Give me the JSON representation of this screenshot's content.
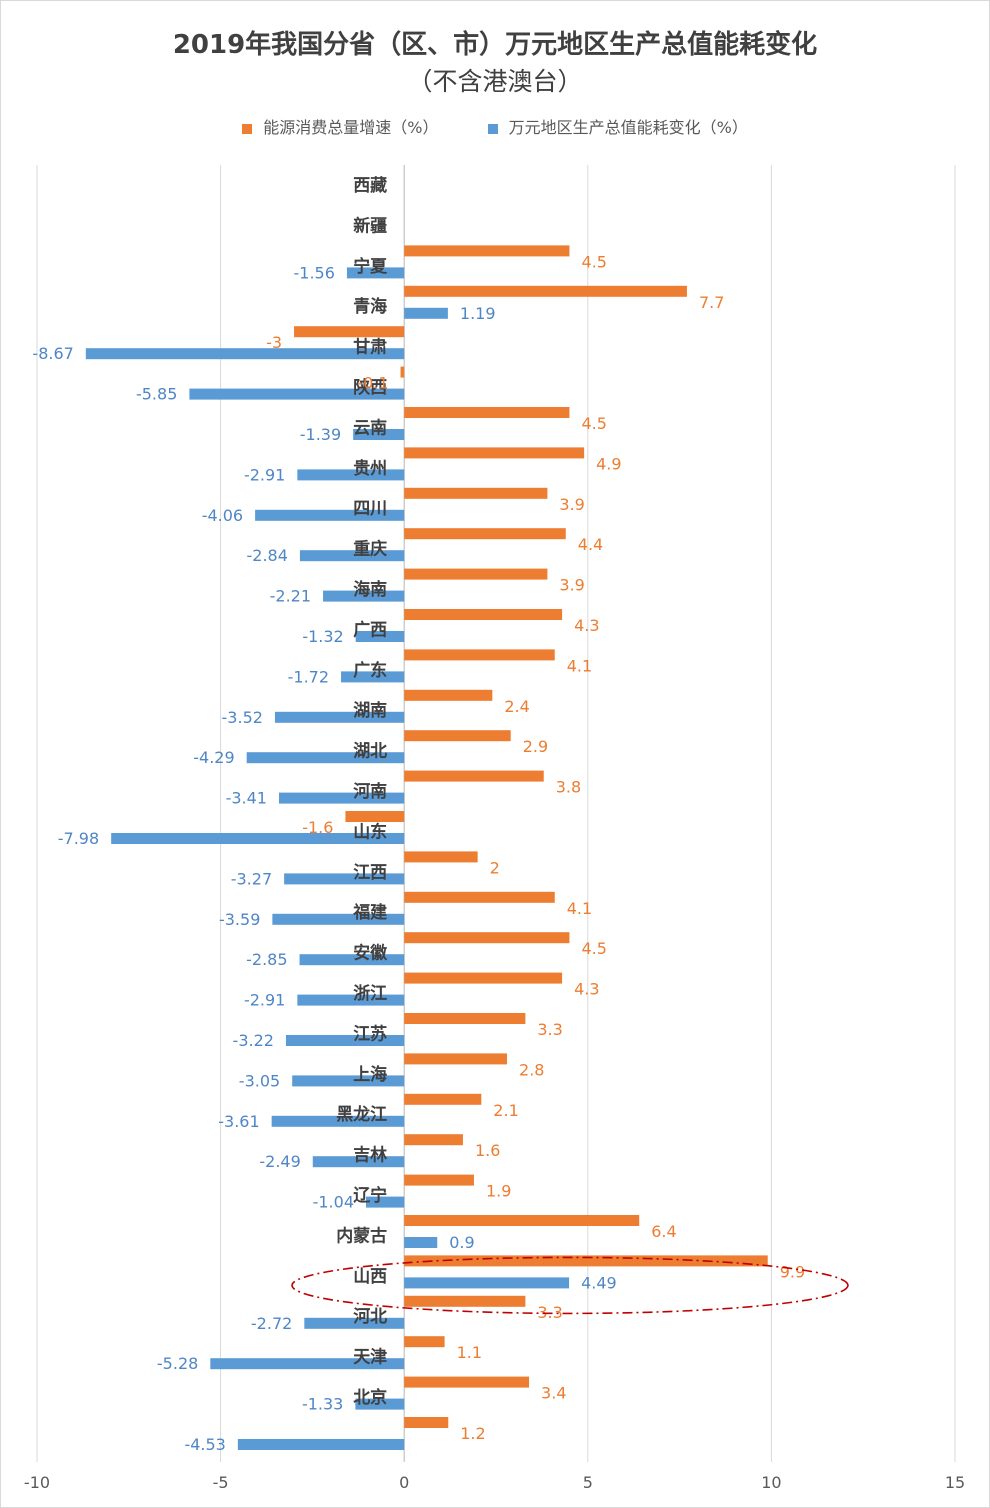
{
  "chart_data": {
    "type": "bar",
    "orientation": "horizontal",
    "title": "2019年我国分省（区、市）万元地区生产总值能耗变化",
    "subtitle": "（不含港澳台）",
    "legend_position": "top",
    "grid": true,
    "xlim": [
      -10,
      15
    ],
    "xticks": [
      -10,
      -5,
      0,
      5,
      10,
      15
    ],
    "xtick_labels": [
      "-10",
      "-5",
      "0",
      "5",
      "10",
      "15"
    ],
    "categories": [
      "西藏",
      "新疆",
      "宁夏",
      "青海",
      "甘肃",
      "陕西",
      "云南",
      "贵州",
      "四川",
      "重庆",
      "海南",
      "广西",
      "广东",
      "湖南",
      "湖北",
      "河南",
      "山东",
      "江西",
      "福建",
      "安徽",
      "浙江",
      "江苏",
      "上海",
      "黑龙江",
      "吉林",
      "辽宁",
      "内蒙古",
      "山西",
      "河北",
      "天津",
      "北京"
    ],
    "series": [
      {
        "name": "能源消费总量增速（%）",
        "color": "#ED7D31",
        "values": [
          null,
          4.5,
          7.7,
          -3,
          -0.1,
          4.5,
          4.9,
          3.9,
          4.4,
          3.9,
          4.3,
          4.1,
          2.4,
          2.9,
          3.8,
          -1.6,
          2,
          4.1,
          4.5,
          4.3,
          3.3,
          2.8,
          2.1,
          1.6,
          1.9,
          6.4,
          9.9,
          3.3,
          1.1,
          3.4,
          1.2
        ],
        "labels": [
          "",
          "4.5",
          "7.7",
          "-3",
          "-0.1",
          "4.5",
          "4.9",
          "3.9",
          "4.4",
          "3.9",
          "4.3",
          "4.1",
          "2.4",
          "2.9",
          "3.8",
          "-1.6",
          "2",
          "4.1",
          "4.5",
          "4.3",
          "3.3",
          "2.8",
          "2.1",
          "1.6",
          "1.9",
          "6.4",
          "9.9",
          "3.3",
          "1.1",
          "3.4",
          "1.2"
        ]
      },
      {
        "name": "万元地区生产总值能耗变化（%）",
        "color": "#5B9BD5",
        "values": [
          null,
          -1.56,
          1.19,
          -8.67,
          -5.85,
          -1.39,
          -2.91,
          -4.06,
          -2.84,
          -2.21,
          -1.32,
          -1.72,
          -3.52,
          -4.29,
          -3.41,
          -7.98,
          -3.27,
          -3.59,
          -2.85,
          -2.91,
          -3.22,
          -3.05,
          -3.61,
          -2.49,
          -1.04,
          0.9,
          4.49,
          -2.72,
          -5.28,
          -1.33,
          -4.53
        ],
        "labels": [
          "",
          "-1.56",
          "1.19",
          "-8.67",
          "-5.85",
          "-1.39",
          "-2.91",
          "-4.06",
          "-2.84",
          "-2.21",
          "-1.32",
          "-1.72",
          "-3.52",
          "-4.29",
          "-3.41",
          "-7.98",
          "-3.27",
          "-3.59",
          "-2.85",
          "-2.91",
          "-3.22",
          "-3.05",
          "-3.61",
          "-2.49",
          "-1.04",
          "0.9",
          "4.49",
          "-2.72",
          "-5.28",
          "-1.33",
          "-4.53"
        ]
      }
    ],
    "highlight": {
      "category": "内蒙古",
      "style": "red dash-dot ellipse",
      "color": "#C00000"
    }
  }
}
